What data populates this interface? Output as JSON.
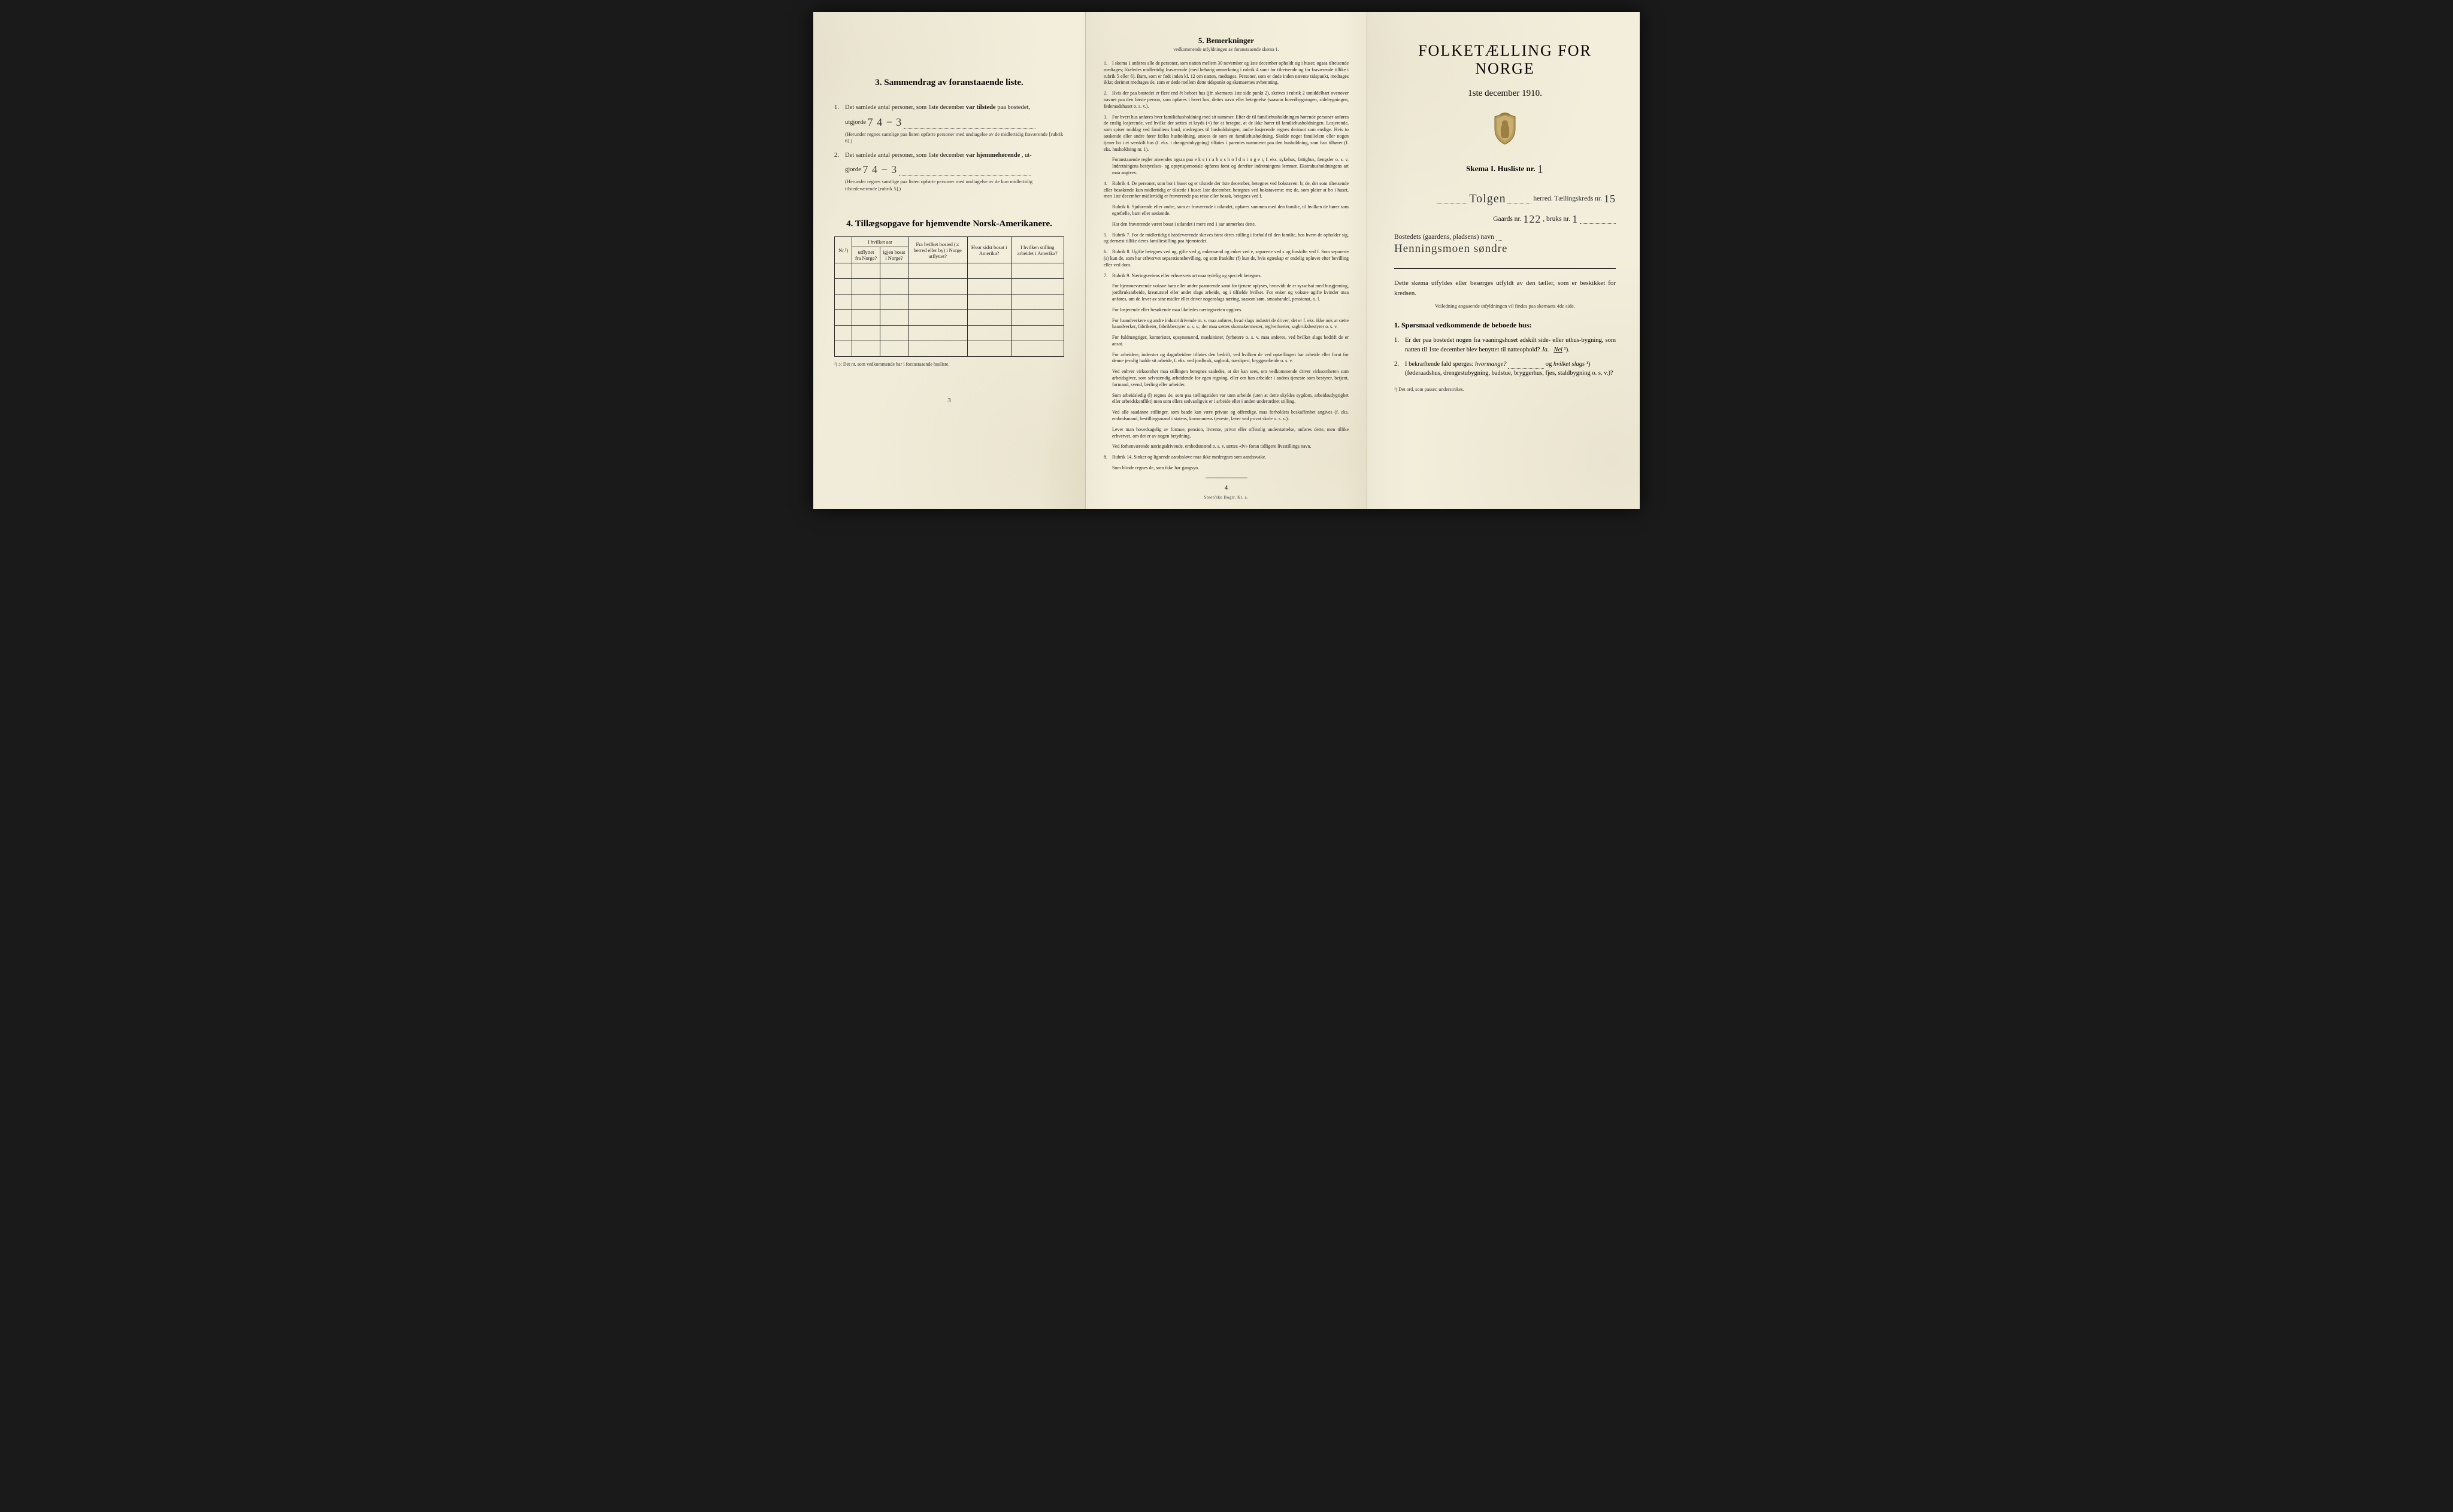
{
  "colors": {
    "paper": "#f2eedb",
    "paper_shadow": "#e8e3ce",
    "ink": "#222222",
    "border": "#2a2a2a",
    "background": "#1a1a1a",
    "handwriting": "#3a3a3a"
  },
  "typography": {
    "body_family": "Times New Roman, Georgia, serif",
    "handwriting_family": "Brush Script MT, cursive",
    "title_fontsize": 26,
    "section_head_fontsize": 15,
    "body_fontsize": 10.5,
    "fine_fontsize": 8
  },
  "page_left": {
    "section3": {
      "heading": "3.   Sammendrag av foranstaaende liste.",
      "item1_pre": "Det samlede antal personer, som 1ste december",
      "item1_bold": "var tilstede",
      "item1_post": "paa bostedet,",
      "item1_line2": "utgjorde",
      "item1_handwritten": "7  4 − 3",
      "item1_note": "(Herunder regnes samtlige paa listen opførte personer med undtagelse av de midlertidig fraværende [rubrik 6].)",
      "item2_pre": "Det samlede antal personer, som 1ste december",
      "item2_bold": "var hjemmehørende",
      "item2_post": ", ut-",
      "item2_line2": "gjorde",
      "item2_handwritten": "7   4 − 3",
      "item2_note": "(Herunder regnes samtlige paa listen opførte personer med undtagelse av de kun midler­tidig tilstedeværende [rubrik 5].)"
    },
    "section4": {
      "heading": "4.  Tillægsopgave for hjemvendte Norsk-Amerikanere.",
      "table": {
        "col_nr": "Nr.¹)",
        "col_aar_group": "I hvilket aar",
        "col_utflyttet": "utflyttet fra Norge?",
        "col_igjen": "igjen bosat i Norge?",
        "col_bosted": "Fra hvilket bosted (ɔ: herred eller by) i Norge utflyttet?",
        "col_sidst": "Hvor sidst bosat i Amerika?",
        "col_stilling": "I hvilken stilling arbeidet i Amerika?",
        "empty_rows": 6
      },
      "footnote": "¹) ɔ: Det nr. som vedkommende har i foranstaaende husliste.",
      "page_number": "3"
    }
  },
  "page_mid": {
    "heading": "5.   Bemerkninger",
    "subheading": "vedkommende utfyldningen av foranstaaende skema 1.",
    "items": [
      {
        "n": "1.",
        "t": "I skema 1 anføres alle de personer, som natten mellem 30 november og 1ste december opholdt sig i huset; ogsaa tilreisende medtages; likeledes midlertidig fraværende (med behørig anmerkning i rubrik 4 samt for tilreisende og for fraværende tillike i rubrik 5 eller 6). Barn, som er født inden kl. 12 om natten, medtages. Personer, som er døde inden nævnte tidspunkt, medtages ikke; derimot medtages de, som er døde mellem dette tidspunkt og skemaernes avhentning."
      },
      {
        "n": "2.",
        "t": "Hvis der paa bostedet er flere end ét beboet hus (jfr. skemaets 1ste side punkt 2), skrives i rubrik 2 umiddelbart ovenover navnet paa den første person, som opføres i hvert hus, dettes navn eller betegnelse (saasom hovedbygningen, sidebygningen, føderaadshuset o. s. v.)."
      },
      {
        "n": "3.",
        "t": "For hvert hus anføres hver familiehusholdning med sit nummer. Efter de til familiehushold­ningen hørende personer anføres de enslig losjerende, ved hvilke der sættes et kryds (×) for at betegne, at de ikke hører til familiehusholdningen. Losjerende, som spiser middag ved familiens bord, medregnes til husholdningen; andre losjerende regnes derimot som enslige. Hvis to søskende eller andre fører fælles husholdning, ansees de som en familiehusholdning. Skulde noget familielem eller nogen tjener bo i et særskilt hus (f. eks. i drengestubygning) tilføies i parentes nummeret paa den husholdning, som han tilhører (f. eks. husholdning nr. 1)."
      },
      {
        "n": "",
        "t": "Foranstaaende regler anvendes ogsaa paa e k s t r a h u s h o l d n i n g e r, f. eks. syke­hus, fattighus, fængsler o. s. v. Indretningens bestyrelses- og opsynspersonale opføres først og derefter indretningens lemmer. Ekstrahusholdningens art maa angives.",
        "indent": true
      },
      {
        "n": "4.",
        "t": "Rubrik 4. De personer, som bor i huset og er tilstede der 1ste december, betegnes ved bokstaven: b; de, der som tilreisende eller besøkende kun midlertidig er tilstede i huset 1ste december, betegnes ved bokstaverne: mt; de, som pleier at bo i huset, men 1ste december midlertidig er fraværende paa reise eller besøk, betegnes ved f."
      },
      {
        "n": "",
        "t": "Rubrik 6. Sjøfarende eller andre, som er fraværende i utlandet, opføres sammen med den familie, til hvilken de hører som egtefælle, barn eller søskende.",
        "indent": true
      },
      {
        "n": "",
        "t": "Har den fraværende været bosat i utlandet i mere end 1 aar anmerkes dette.",
        "indent": true
      },
      {
        "n": "5.",
        "t": "Rubrik 7. For de midlertidig tilstedeværende skrives først deres stilling i forhold til den familie, hos hvem de opholder sig, og dernæst tillike deres familiestilling paa hjemstedet."
      },
      {
        "n": "6.",
        "t": "Rubrik 8. Ugifte betegnes ved ug, gifte ved g, enkemænd og enker ved e, separerte ved s og fraskilte ved f. Som separerte (s) kun de, som har erhvervet separations­bevilling, og som fraskilte (f) kun de, hvis egteskap er endelig opløvet efter bevilling eller ved dom."
      },
      {
        "n": "7.",
        "t": "Rubrik 9. Næringsveiens eller erhvervets art maa tydelig og specielt betegnes."
      },
      {
        "n": "",
        "t": "For hjemmeværende voksne barn eller andre paarørende samt for tjenere oplyses, hvor­vidt de er sysselsat med husgjerning, jordbruksarbeide, kreaturstel eller andet slags arbeide, og i tilfælde hvilket. For enker og voksne ugifte kvinder maa anføres, om de lever av sine midler eller driver nogenslags næring, saasom søm, smaahandel, pensionat, o. l.",
        "indent": true
      },
      {
        "n": "",
        "t": "For losjerende eller besøkende maa likeledes næringsveien opgives.",
        "indent": true
      },
      {
        "n": "",
        "t": "For haandverkere og andre industridrivende m. v. maa anføres, hvad slags industri de driver; det er f. eks. ikke nok at sætte haandverker, fabrikeier, fabrikbestyrer o. s. v.; der maa sættes skomakermester, teglverkseier, sagbruksbestyrer o. s. v.",
        "indent": true
      },
      {
        "n": "",
        "t": "For fuldmægtiger, kontorister, opsynsmænd, maskinister, fyrbøtere o. s. v. maa anføres, ved hvilket slags bedrift de er ansat.",
        "indent": true
      },
      {
        "n": "",
        "t": "For arbeidere, inderster og dagarbeidere tilføies den bedrift, ved hvilken de ved op­tællingen har arbeide eller forut for denne jevnlig hadde sit arbeide, f. eks. ved jordbruk, sagbruk, træsliperi, bryggearbeide o. s. v.",
        "indent": true
      },
      {
        "n": "",
        "t": "Ved enhver virksomhet maa stillingen betegnes saaledes, at det kan sees, om ved­kommende driver virksomheten som arbeidsgiver, som selvstændig arbeidende for egen regning, eller om han arbeider i andres tjeneste som bestyrer, betjent, formand, svend, lærling eller arbeider.",
        "indent": true
      },
      {
        "n": "",
        "t": "Som arbeidsledig (l) regnes de, som paa tællingstiden var uten arbeide (uten at dette skyldes sygdom, arbeidsudygtighet eller arbeidskonflikt) men som ellers sedvanligvis er i arbeide eller i anden underordnet stilling.",
        "indent": true
      },
      {
        "n": "",
        "t": "Ved alle saadanne stillinger, som baade kan være private og offentlige, maa for­holdets beskaffenhet angives (f. eks. embedsmand, bestillingsmand i statens, kommunens tjeneste, lærer ved privat skole o. s. v.).",
        "indent": true
      },
      {
        "n": "",
        "t": "Lever man hovedsagelig av formue, pension, livrente, privat eller offentlig under­støttelse, anføres dette, men tillike erhvervet, om det er av nogen betydning.",
        "indent": true
      },
      {
        "n": "",
        "t": "Ved forhenværende næringsdrivende, embedsmænd o. s. v. sættes «fv» foran tidligere livsstillings navn.",
        "indent": true
      },
      {
        "n": "8.",
        "t": "Rubrik 14. Sinker og lignende aandssløve maa ikke medregnes som aandssvake."
      },
      {
        "n": "",
        "t": "Som blinde regnes de, som ikke har gangsyn.",
        "indent": true
      }
    ],
    "page_number": "4",
    "imprint": "Steen'ske Bogtr.   Kr. a."
  },
  "page_right": {
    "title": "FOLKETÆLLING FOR NORGE",
    "date_line": "1ste december 1910.",
    "skema_pre": "Skema I.   Husliste nr.",
    "skema_nr_hand": "1",
    "herred_label": "herred.   Tællingskreds nr.",
    "herred_hand": "Tolgen",
    "kreds_nr_hand": "15",
    "gaard_label_pre": "Gaards nr.",
    "gaard_nr_hand": "122",
    "gaard_label_mid": ", bruks nr.",
    "bruks_nr_hand": "1",
    "bosted_label": "Bostedets (gaardens, pladsens) navn",
    "bosted_hand": "Henningsmoen søndre",
    "instr": "Dette skema utfyldes eller besørges utfyldt av den tæller, som er beskikket for kredsen.",
    "instr_small": "Veiledning angaaende utfyldningen vil findes paa skemaets 4de side.",
    "q_heading": "1.  Spørsmaal vedkommende de beboede hus:",
    "q1": {
      "n": "1.",
      "t_pre": "Er der paa bostedet nogen fra vaaningshuset adskilt side- eller uthus-bygning, som natten til 1ste december blev benyttet til natteophold?   ",
      "ja": "Ja.",
      "nei": "Nei",
      "sup": " ¹)."
    },
    "q2": {
      "n": "2.",
      "t_pre": "I bekræftende fald spørges: ",
      "hvormange": "hvormange?",
      "og": " og ",
      "hvilket": "hvilket slags",
      "sup": " ¹)",
      "t_post": "(føderaadshus, drengestubygning, badstue, bryggerhus, fjøs, stald­bygning o. s. v.)?"
    },
    "footnote": "¹) Det ord, som passer, understrekes."
  }
}
